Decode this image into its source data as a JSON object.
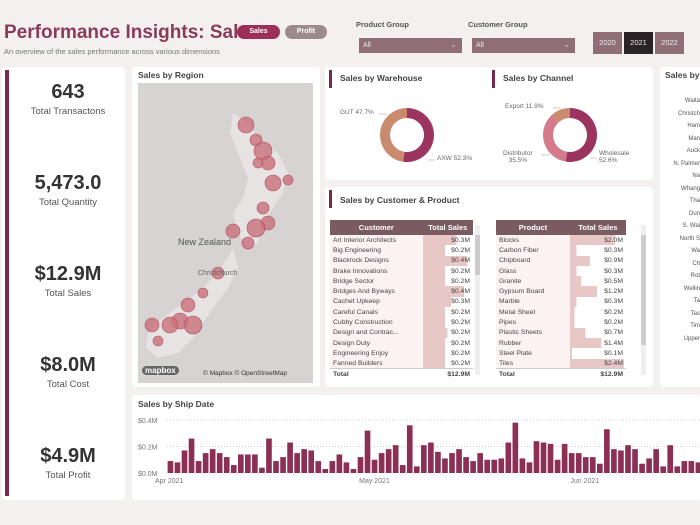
{
  "header": {
    "title": "Performance Insights: Sales",
    "subtitle": "An overview of the sales performance across various dimensions",
    "toggle": {
      "sales": "Sales",
      "profit": "Profit"
    },
    "filters": [
      {
        "label": "Product Group",
        "value": "All"
      },
      {
        "label": "Customer Group",
        "value": "All"
      }
    ],
    "years": [
      "2020",
      "2021",
      "2022"
    ],
    "selected_year": "2021"
  },
  "kpis": [
    {
      "value": "643",
      "label": "Total Transactons"
    },
    {
      "value": "5,473.0",
      "label": "Total Quantity"
    },
    {
      "value": "$12.9M",
      "label": "Total Sales"
    },
    {
      "value": "$8.0M",
      "label": "Total Cost"
    },
    {
      "value": "$4.9M",
      "label": "Total Profit"
    }
  ],
  "region": {
    "title": "Sales by Region",
    "country_label": "New Zealand",
    "city_label": "Christchurch",
    "attribution": "© Mapbox © OpenStreetMap",
    "logo": "mapbox"
  },
  "warehouse": {
    "title": "Sales by Warehouse",
    "slices": [
      {
        "name": "AXW",
        "pct": 52.3,
        "label": "AXW 52.3%",
        "color": "#9b3560"
      },
      {
        "name": "GUT",
        "pct": 47.7,
        "label": "GUT 47.7%",
        "color": "#c98a6e"
      }
    ]
  },
  "channel": {
    "title": "Sales by Channel",
    "slices": [
      {
        "name": "Wholesale",
        "pct": 52.6,
        "label": "Wholesale",
        "pctlabel": "52.6%",
        "color": "#9b3560"
      },
      {
        "name": "Distributor",
        "pct": 35.5,
        "label": "Distributor",
        "pctlabel": "35.5%",
        "color": "#d47a8a"
      },
      {
        "name": "Export",
        "pct": 11.9,
        "label": "Export 11.9%",
        "color": "#c98a6e"
      }
    ]
  },
  "cust_prod": {
    "title": "Sales by Customer & Product",
    "customer_table": {
      "headers": [
        "Customer",
        "Total Sales"
      ],
      "rows": [
        [
          "Art Interior Architects",
          "$0.3M",
          0.3
        ],
        [
          "Big Engineering",
          "$0.2M",
          0.2
        ],
        [
          "Blackrock Designs",
          "$0.4M",
          0.4
        ],
        [
          "Brake Innovations",
          "$0.2M",
          0.2
        ],
        [
          "Bridge Sector",
          "$0.2M",
          0.2
        ],
        [
          "Bridges And Byways",
          "$0.4M",
          0.37
        ],
        [
          "Cachet Upkeep",
          "$0.3M",
          0.25
        ],
        [
          "Careful Canals",
          "$0.2M",
          0.2
        ],
        [
          "Cubby Construction",
          "$0.2M",
          0.2
        ],
        [
          "Design and Contrac...",
          "$0.2M",
          0.22
        ],
        [
          "Design Duty",
          "$0.2M",
          0.2
        ],
        [
          "Engineering Enjoy",
          "$0.2M",
          0.2
        ],
        [
          "Fanned Builders",
          "$0.2M",
          0.2
        ]
      ],
      "total": [
        "Total",
        "$12.9M"
      ]
    },
    "product_table": {
      "headers": [
        "Product",
        "Total Sales"
      ],
      "rows": [
        [
          "Blocks",
          "$2.0M",
          2.0
        ],
        [
          "Carbon Fiber",
          "$0.3M",
          0.3
        ],
        [
          "Chipboard",
          "$0.9M",
          0.9
        ],
        [
          "Glass",
          "$0.3M",
          0.3
        ],
        [
          "Granite",
          "$0.5M",
          0.5
        ],
        [
          "Gypsum Board",
          "$1.2M",
          1.2
        ],
        [
          "Marble",
          "$0.3M",
          0.3
        ],
        [
          "Metal Sheet",
          "$0.2M",
          0.2
        ],
        [
          "Pipes",
          "$0.2M",
          0.2
        ],
        [
          "Plastic Sheets",
          "$0.7M",
          0.7
        ],
        [
          "Rubber",
          "$1.4M",
          1.4
        ],
        [
          "Steel Plate",
          "$0.1M",
          0.1
        ],
        [
          "Tiles",
          "$2.4M",
          2.4
        ]
      ],
      "total": [
        "Total",
        "$12.9M"
      ]
    }
  },
  "right_panel": {
    "title": "Sales by",
    "items": [
      "Waita",
      "Christch",
      "Ham",
      "Man",
      "Auck",
      "N. Palmer",
      "Na",
      "Whang",
      "Tha",
      "Dun",
      "S. Wai",
      "North S",
      "Wa",
      "Ch",
      "Rot",
      "Wellin",
      "Ta",
      "Tas",
      "Tim",
      "Upper"
    ]
  },
  "chart_data": {
    "type": "bar",
    "title": "Sales by Ship Date",
    "ylim": [
      0,
      0.4
    ],
    "yticks": [
      "$0.0M",
      "$0.2M",
      "$0.4M"
    ],
    "xticks": [
      "Apr 2021",
      "May 2021",
      "Jun 2021"
    ],
    "grid": true,
    "color": "#8b2f55",
    "values": [
      0.09,
      0.08,
      0.17,
      0.26,
      0.09,
      0.15,
      0.18,
      0.15,
      0.12,
      0.06,
      0.14,
      0.14,
      0.14,
      0.04,
      0.26,
      0.09,
      0.12,
      0.23,
      0.15,
      0.18,
      0.17,
      0.09,
      0.03,
      0.09,
      0.14,
      0.08,
      0.03,
      0.12,
      0.32,
      0.1,
      0.15,
      0.18,
      0.21,
      0.06,
      0.36,
      0.05,
      0.21,
      0.23,
      0.16,
      0.11,
      0.15,
      0.18,
      0.12,
      0.09,
      0.15,
      0.1,
      0.1,
      0.11,
      0.23,
      0.38,
      0.11,
      0.08,
      0.24,
      0.23,
      0.22,
      0.1,
      0.22,
      0.15,
      0.15,
      0.12,
      0.12,
      0.07,
      0.33,
      0.18,
      0.17,
      0.21,
      0.18,
      0.07,
      0.11,
      0.18,
      0.05,
      0.21,
      0.05,
      0.09,
      0.09,
      0.08
    ]
  }
}
